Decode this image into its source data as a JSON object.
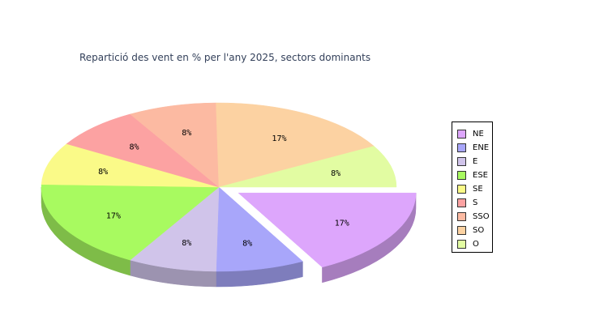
{
  "chart_data": {
    "type": "pie",
    "title": "Repartició des vent en % per l'any 2025, sectors dominants",
    "categories": [
      "NE",
      "ENE",
      "E",
      "ESE",
      "SE",
      "S",
      "SSO",
      "SO",
      "O"
    ],
    "values": [
      17,
      8,
      8,
      17,
      8,
      8,
      8,
      17,
      8
    ],
    "labels": [
      "17%",
      "8%",
      "8%",
      "17%",
      "8%",
      "8%",
      "8%",
      "17%",
      "8%"
    ],
    "colors": [
      "#dda6fc",
      "#a8a6fa",
      "#d0c4ea",
      "#a8fa60",
      "#fafa88",
      "#fca2a2",
      "#fcbaa2",
      "#fcd2a2",
      "#e2fca2"
    ],
    "exploded": [
      "NE"
    ],
    "legend": "right",
    "style": "3d"
  }
}
